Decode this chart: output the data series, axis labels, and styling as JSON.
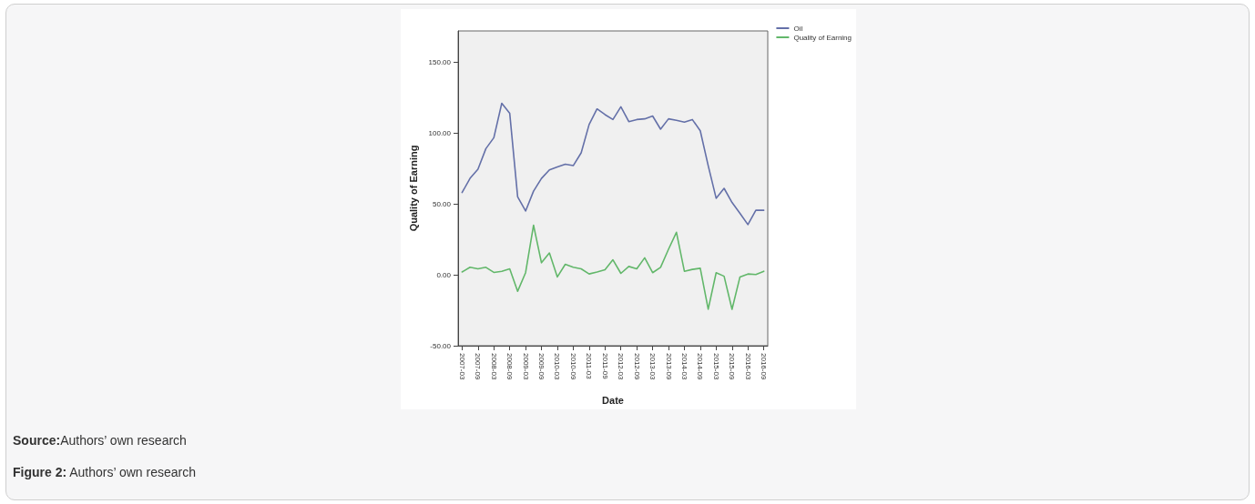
{
  "chart_data": {
    "type": "line",
    "xlabel": "Date",
    "ylabel": "Quality of Earning",
    "categories": [
      "2007-03",
      null,
      "2007-09",
      null,
      "2008-03",
      null,
      "2008-09",
      null,
      "2009-03",
      null,
      "2009-09",
      null,
      "2010-03",
      null,
      "2010-09",
      null,
      "2011-03",
      null,
      "2011-09",
      null,
      "2012-03",
      null,
      "2012-09",
      null,
      "2013-03",
      null,
      "2013-09",
      null,
      "2014-03",
      null,
      "2014-09",
      null,
      "2015-03",
      null,
      "2015-09",
      null,
      "2016-03",
      null,
      "2016-09"
    ],
    "series": [
      {
        "name": "Oil",
        "color": "#6470a8",
        "values": [
          58,
          68,
          74.5,
          89,
          96.7,
          121,
          114,
          55,
          45,
          59,
          68,
          74,
          76,
          78,
          77,
          86,
          106,
          117,
          113,
          109.5,
          118.5,
          108,
          109.5,
          110,
          112,
          102.7,
          110,
          109,
          107.7,
          109.5,
          101.6,
          77,
          54,
          61,
          51,
          43.4,
          35.4,
          45.5,
          45.5
        ]
      },
      {
        "name": "Quality of Earning",
        "color": "#62b76a",
        "values": [
          2,
          5.3,
          4.2,
          5.3,
          1.7,
          2.5,
          4.2,
          -11.6,
          1.5,
          35,
          8.5,
          15.4,
          -1.5,
          7.4,
          5.3,
          4.2,
          0.6,
          2,
          3.6,
          10.6,
          1,
          5.9,
          4.2,
          12,
          1.5,
          5.3,
          18,
          30,
          2.5,
          3.8,
          4.6,
          -24.3,
          1.5,
          -1,
          -24.3,
          -1.5,
          0.6,
          0.2,
          2.5
        ]
      }
    ],
    "ylim": [
      -50,
      172
    ],
    "yticks": [
      {
        "value": -50,
        "label": "-50.00"
      },
      {
        "value": 0,
        "label": "0.00"
      },
      {
        "value": 50,
        "label": "50.00"
      },
      {
        "value": 100,
        "label": "100.00"
      },
      {
        "value": 150,
        "label": "150.00"
      }
    ],
    "grid": false,
    "legend": "top right",
    "marker": "none",
    "line_style": "solid",
    "annotations": [
      "Source:Authors’ own research",
      "Figure 2: Authors’ own research"
    ]
  }
}
